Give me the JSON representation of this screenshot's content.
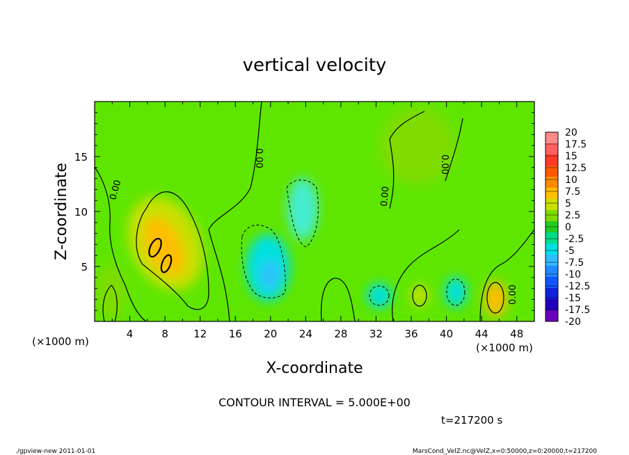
{
  "chart_data": {
    "type": "heatmap",
    "title": "vertical velocity",
    "xlabel": "X-coordinate",
    "ylabel": "Z-coordinate",
    "x_unit_left": "(×1000 m)",
    "x_unit_right": "(×1000 m)",
    "xlim": [
      0,
      50
    ],
    "ylim": [
      0,
      20
    ],
    "x_ticks": [
      "4",
      "8",
      "12",
      "16",
      "20",
      "24",
      "28",
      "32",
      "36",
      "40",
      "44",
      "48"
    ],
    "y_ticks": [
      "5",
      "10",
      "15"
    ],
    "contour_labels": [
      "0.00",
      "0.00",
      "0.00",
      "0.00",
      "0.00"
    ],
    "contour_interval_text": "CONTOUR INTERVAL = 5.000E+00",
    "time_text": "t=217200 s",
    "footer_left": "./gpview-new  2011-01-01",
    "footer_right": "MarsCond_VelZ.nc@VelZ,x=0:50000,z=0:20000,t=217200",
    "colorbar": {
      "labels": [
        "20",
        "17.5",
        "15",
        "12.5",
        "10",
        "7.5",
        "5",
        "2.5",
        "0",
        "-2.5",
        "-5",
        "-7.5",
        "-10",
        "-12.5",
        "-15",
        "-17.5",
        "-20"
      ],
      "colors": [
        "#ff8a8a",
        "#ff5f5f",
        "#ff3a2a",
        "#ff5a00",
        "#ff8c00",
        "#ffbe00",
        "#c8e000",
        "#7fdb00",
        "#22cc22",
        "#00dd88",
        "#00e0e0",
        "#33bbff",
        "#2288ff",
        "#1155ff",
        "#1122dd",
        "#2200bb",
        "#6a00bb"
      ]
    },
    "features": [
      {
        "kind": "updraft",
        "x": 8,
        "z": 7,
        "value": 10
      },
      {
        "kind": "updraft",
        "x": 9,
        "z": 5.5,
        "value": 10
      },
      {
        "kind": "updraft",
        "x": 46,
        "z": 2,
        "value": 7.5
      },
      {
        "kind": "updraft",
        "x": 36.5,
        "z": 2.5,
        "value": 5
      },
      {
        "kind": "downdraft",
        "x": 20,
        "z": 4,
        "value": -7.5
      },
      {
        "kind": "downdraft",
        "x": 24,
        "z": 10,
        "value": -5
      },
      {
        "kind": "downdraft",
        "x": 32,
        "z": 2.5,
        "value": -5
      },
      {
        "kind": "downdraft",
        "x": 41,
        "z": 3,
        "value": -5
      }
    ]
  }
}
